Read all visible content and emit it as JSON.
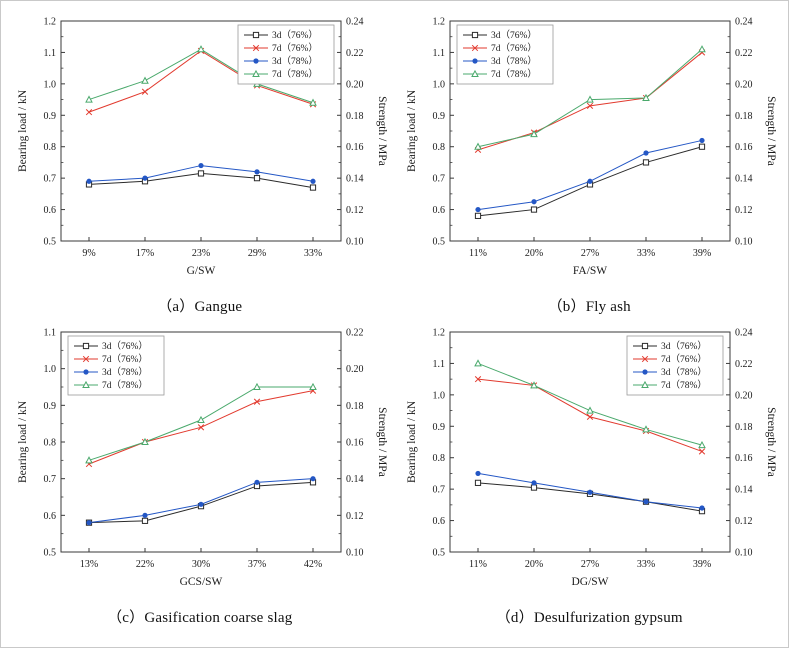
{
  "figure": {
    "background": "#ffffff",
    "axis_color": "#3a3a3a",
    "legend_border_color": "#999999"
  },
  "chart_data": [
    {
      "type": "line",
      "caption": "（a）Gangue",
      "xlabel": "G/SW",
      "ylabel_left": "Bearing load / kN",
      "ylabel_right": "Strength / MPa",
      "categories": [
        "9%",
        "17%",
        "23%",
        "29%",
        "33%"
      ],
      "ylim_left": [
        0.5,
        1.2
      ],
      "ytick_step_left": 0.1,
      "ydecimals_left": 1,
      "ylim_right": [
        0.1,
        0.24
      ],
      "ytick_step_right": 0.02,
      "ydecimals_right": 2,
      "legend_position": "top-right",
      "series": [
        {
          "name": "3d（76%）",
          "color": "#2b2b2b",
          "marker": "square-open",
          "values": [
            0.68,
            0.69,
            0.715,
            0.7,
            0.67
          ]
        },
        {
          "name": "7d（76%）",
          "color": "#e23a2e",
          "marker": "x",
          "values": [
            0.91,
            0.975,
            1.105,
            0.995,
            0.935
          ]
        },
        {
          "name": "3d（78%）",
          "color": "#2457c5",
          "marker": "circle-filled",
          "values": [
            0.69,
            0.7,
            0.74,
            0.72,
            0.69
          ]
        },
        {
          "name": "7d（78%）",
          "color": "#4aa96c",
          "marker": "triangle-open",
          "values": [
            0.95,
            1.01,
            1.11,
            1.0,
            0.94
          ]
        }
      ]
    },
    {
      "type": "line",
      "caption": "（b）Fly ash",
      "xlabel": "FA/SW",
      "ylabel_left": "Bearing load / kN",
      "ylabel_right": "Strength / MPa",
      "categories": [
        "11%",
        "20%",
        "27%",
        "33%",
        "39%"
      ],
      "ylim_left": [
        0.5,
        1.2
      ],
      "ytick_step_left": 0.1,
      "ydecimals_left": 1,
      "ylim_right": [
        0.1,
        0.24
      ],
      "ytick_step_right": 0.02,
      "ydecimals_right": 2,
      "legend_position": "top-left",
      "series": [
        {
          "name": "3d（76%）",
          "color": "#2b2b2b",
          "marker": "square-open",
          "values": [
            0.58,
            0.6,
            0.68,
            0.75,
            0.8
          ]
        },
        {
          "name": "7d（76%）",
          "color": "#e23a2e",
          "marker": "x",
          "values": [
            0.79,
            0.845,
            0.93,
            0.955,
            1.1
          ]
        },
        {
          "name": "3d（78%）",
          "color": "#2457c5",
          "marker": "circle-filled",
          "values": [
            0.6,
            0.625,
            0.69,
            0.78,
            0.82
          ]
        },
        {
          "name": "7d（78%）",
          "color": "#4aa96c",
          "marker": "triangle-open",
          "values": [
            0.8,
            0.84,
            0.95,
            0.955,
            1.11
          ]
        }
      ]
    },
    {
      "type": "line",
      "caption": "（c）Gasification coarse slag",
      "xlabel": "GCS/SW",
      "ylabel_left": "Bearing load / kN",
      "ylabel_right": "Strength / MPa",
      "categories": [
        "13%",
        "22%",
        "30%",
        "37%",
        "42%"
      ],
      "ylim_left": [
        0.5,
        1.1
      ],
      "ytick_step_left": 0.1,
      "ydecimals_left": 1,
      "ylim_right": [
        0.1,
        0.22
      ],
      "ytick_step_right": 0.02,
      "ydecimals_right": 2,
      "legend_position": "top-left",
      "series": [
        {
          "name": "3d（76%）",
          "color": "#2b2b2b",
          "marker": "square-open",
          "values": [
            0.58,
            0.585,
            0.625,
            0.68,
            0.69
          ]
        },
        {
          "name": "7d（76%）",
          "color": "#e23a2e",
          "marker": "x",
          "values": [
            0.74,
            0.8,
            0.84,
            0.91,
            0.94
          ]
        },
        {
          "name": "3d（78%）",
          "color": "#2457c5",
          "marker": "circle-filled",
          "values": [
            0.58,
            0.6,
            0.63,
            0.69,
            0.7
          ]
        },
        {
          "name": "7d（78%）",
          "color": "#4aa96c",
          "marker": "triangle-open",
          "values": [
            0.75,
            0.8,
            0.86,
            0.95,
            0.95
          ]
        }
      ]
    },
    {
      "type": "line",
      "caption": "（d）Desulfurization gypsum",
      "xlabel": "DG/SW",
      "ylabel_left": "Bearing load / kN",
      "ylabel_right": "Strength / MPa",
      "categories": [
        "11%",
        "20%",
        "27%",
        "33%",
        "39%"
      ],
      "ylim_left": [
        0.5,
        1.2
      ],
      "ytick_step_left": 0.1,
      "ydecimals_left": 1,
      "ylim_right": [
        0.1,
        0.24
      ],
      "ytick_step_right": 0.02,
      "ydecimals_right": 2,
      "legend_position": "top-right",
      "series": [
        {
          "name": "3d（76%）",
          "color": "#2b2b2b",
          "marker": "square-open",
          "values": [
            0.72,
            0.705,
            0.685,
            0.66,
            0.63
          ]
        },
        {
          "name": "7d（76%）",
          "color": "#e23a2e",
          "marker": "x",
          "values": [
            1.05,
            1.03,
            0.93,
            0.885,
            0.82
          ]
        },
        {
          "name": "3d（78%）",
          "color": "#2457c5",
          "marker": "circle-filled",
          "values": [
            0.75,
            0.72,
            0.69,
            0.66,
            0.64
          ]
        },
        {
          "name": "7d（78%）",
          "color": "#4aa96c",
          "marker": "triangle-open",
          "values": [
            1.1,
            1.03,
            0.95,
            0.89,
            0.84
          ]
        }
      ]
    }
  ]
}
